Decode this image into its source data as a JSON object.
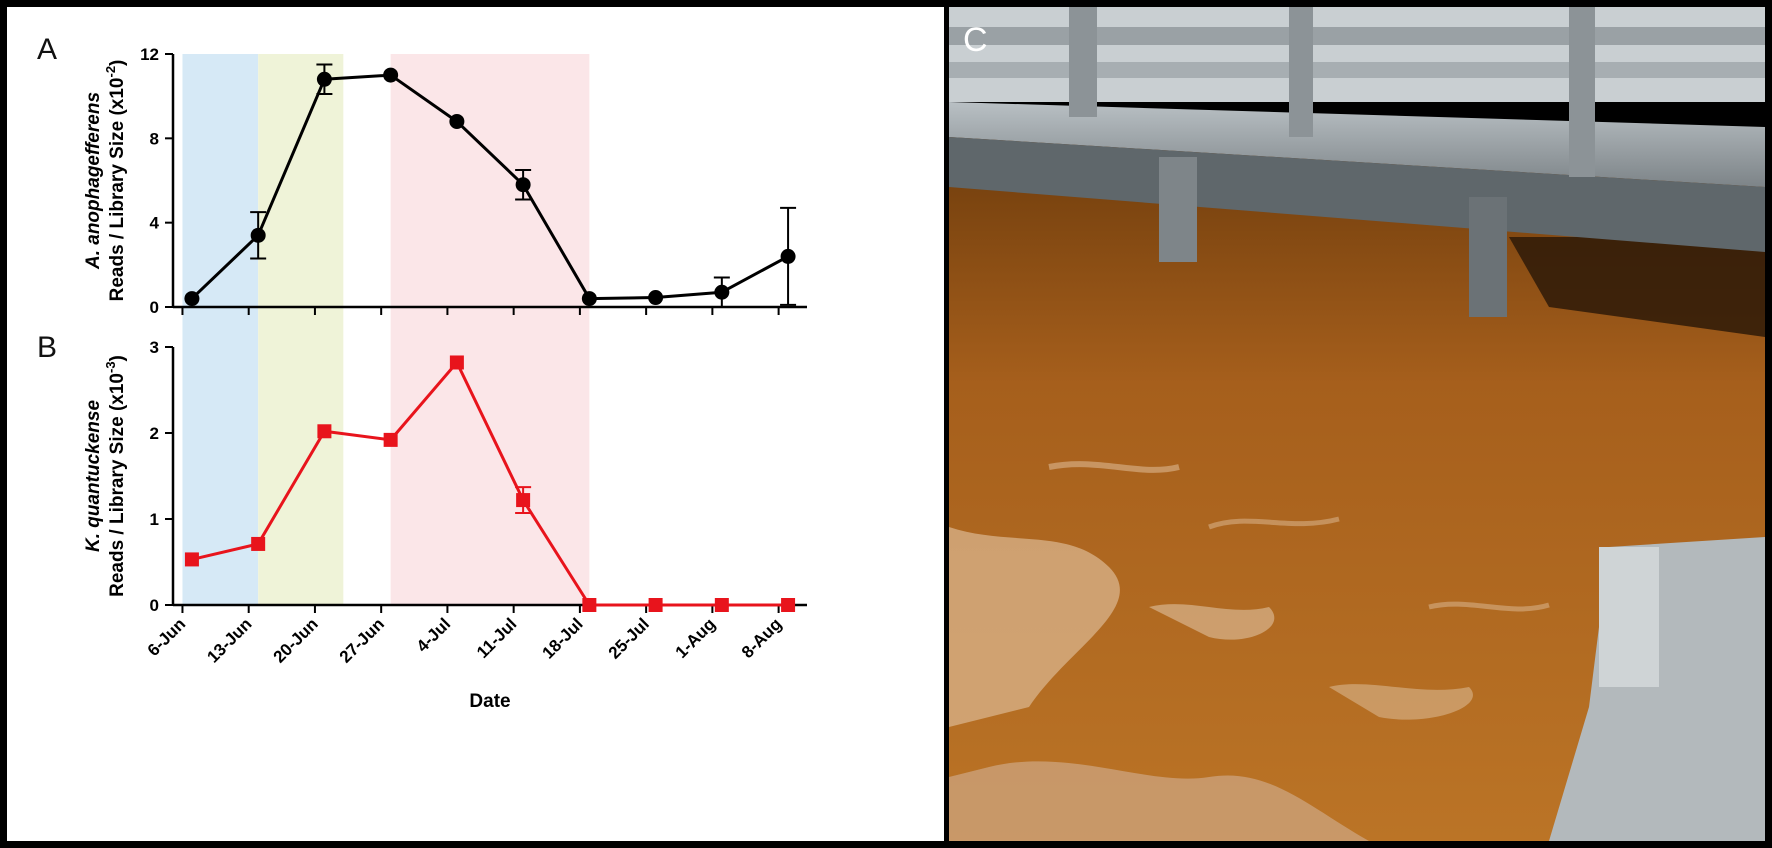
{
  "chart_data": [
    {
      "panel": "A",
      "type": "line",
      "marker": "circle",
      "color": "#000000",
      "categories": [
        "6-Jun",
        "13-Jun",
        "20-Jun",
        "27-Jun",
        "4-Jul",
        "11-Jul",
        "18-Jul",
        "25-Jul",
        "1-Aug",
        "8-Aug"
      ],
      "x_days": [
        0,
        7,
        14,
        21,
        28,
        35,
        42,
        49,
        56,
        63
      ],
      "points": [
        {
          "x": 1,
          "y": 0.4,
          "err": 0
        },
        {
          "x": 8,
          "y": 3.4,
          "err": 1.1
        },
        {
          "x": 15,
          "y": 10.8,
          "err": 0.7
        },
        {
          "x": 22,
          "y": 11.0,
          "err": 0
        },
        {
          "x": 29,
          "y": 8.8,
          "err": 0
        },
        {
          "x": 36,
          "y": 5.8,
          "err": 0.7
        },
        {
          "x": 43,
          "y": 0.4,
          "err": 0
        },
        {
          "x": 50,
          "y": 0.45,
          "err": 0
        },
        {
          "x": 57,
          "y": 0.7,
          "err": 0.7
        },
        {
          "x": 64,
          "y": 2.4,
          "err": 2.3
        }
      ],
      "ylim": [
        0,
        12
      ],
      "yticks": [
        "0",
        "4",
        "8",
        "12"
      ],
      "ylabel_species": "A. anophagefferens",
      "ylabel_main": "Reads / Library Size (x10",
      "ylabel_exp": "-2",
      "ylabel_close": ")"
    },
    {
      "panel": "B",
      "type": "line",
      "marker": "square",
      "color": "#e8141c",
      "categories": [
        "6-Jun",
        "13-Jun",
        "20-Jun",
        "27-Jun",
        "4-Jul",
        "11-Jul",
        "18-Jul",
        "25-Jul",
        "1-Aug",
        "8-Aug"
      ],
      "x_days": [
        0,
        7,
        14,
        21,
        28,
        35,
        42,
        49,
        56,
        63
      ],
      "points": [
        {
          "x": 1,
          "y": 0.53,
          "err": 0
        },
        {
          "x": 8,
          "y": 0.71,
          "err": 0
        },
        {
          "x": 15,
          "y": 2.02,
          "err": 0
        },
        {
          "x": 22,
          "y": 1.92,
          "err": 0
        },
        {
          "x": 29,
          "y": 2.82,
          "err": 0
        },
        {
          "x": 36,
          "y": 1.22,
          "err": 0.15
        },
        {
          "x": 43,
          "y": 0.0,
          "err": 0
        },
        {
          "x": 50,
          "y": 0.0,
          "err": 0
        },
        {
          "x": 57,
          "y": 0.0,
          "err": 0
        },
        {
          "x": 64,
          "y": 0.0,
          "err": 0
        }
      ],
      "ylim": [
        0,
        3
      ],
      "yticks": [
        "0",
        "1",
        "2",
        "3"
      ],
      "ylabel_species": "K. quantuckense",
      "ylabel_main": "Reads / Library Size (x10",
      "ylabel_exp": "-3",
      "ylabel_close": ")"
    }
  ],
  "shading": [
    {
      "from": 0,
      "to": 8,
      "color": "#d6e9f6"
    },
    {
      "from": 8,
      "to": 17,
      "color": "#eff3d8"
    },
    {
      "from": 22,
      "to": 43,
      "color": "#fbe6e8"
    }
  ],
  "xlabel": "Date",
  "panel_labels": {
    "a": "A",
    "b": "B",
    "c": "C"
  },
  "photo": {
    "water_color": "#b76e22",
    "wood_color": "#8f979b"
  }
}
